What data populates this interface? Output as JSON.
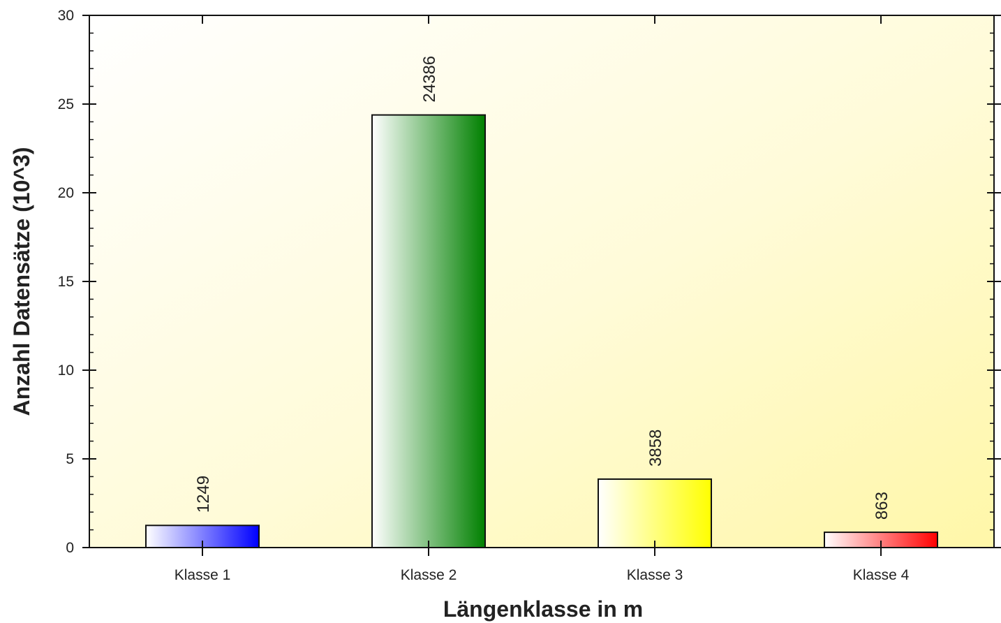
{
  "chart_data": {
    "type": "bar",
    "categories": [
      "Klasse 1",
      "Klasse 2",
      "Klasse 3",
      "Klasse 4"
    ],
    "values": [
      1.249,
      24.386,
      3.858,
      0.863
    ],
    "data_labels": [
      "1249",
      "24386",
      "3858",
      "863"
    ],
    "bar_colors": [
      "#0000ff",
      "#008000",
      "#ffff00",
      "#ff0000"
    ],
    "xlabel": "Längenklasse in m",
    "ylabel": "Anzahl Datensätze (10^3)",
    "ylim": [
      0,
      30
    ],
    "yticks": [
      0,
      5,
      10,
      15,
      20,
      25,
      30
    ],
    "ytick_labels": [
      "0",
      "5",
      "10",
      "15",
      "20",
      "25",
      "30"
    ],
    "grid": false,
    "background": "yellow-gradient"
  }
}
